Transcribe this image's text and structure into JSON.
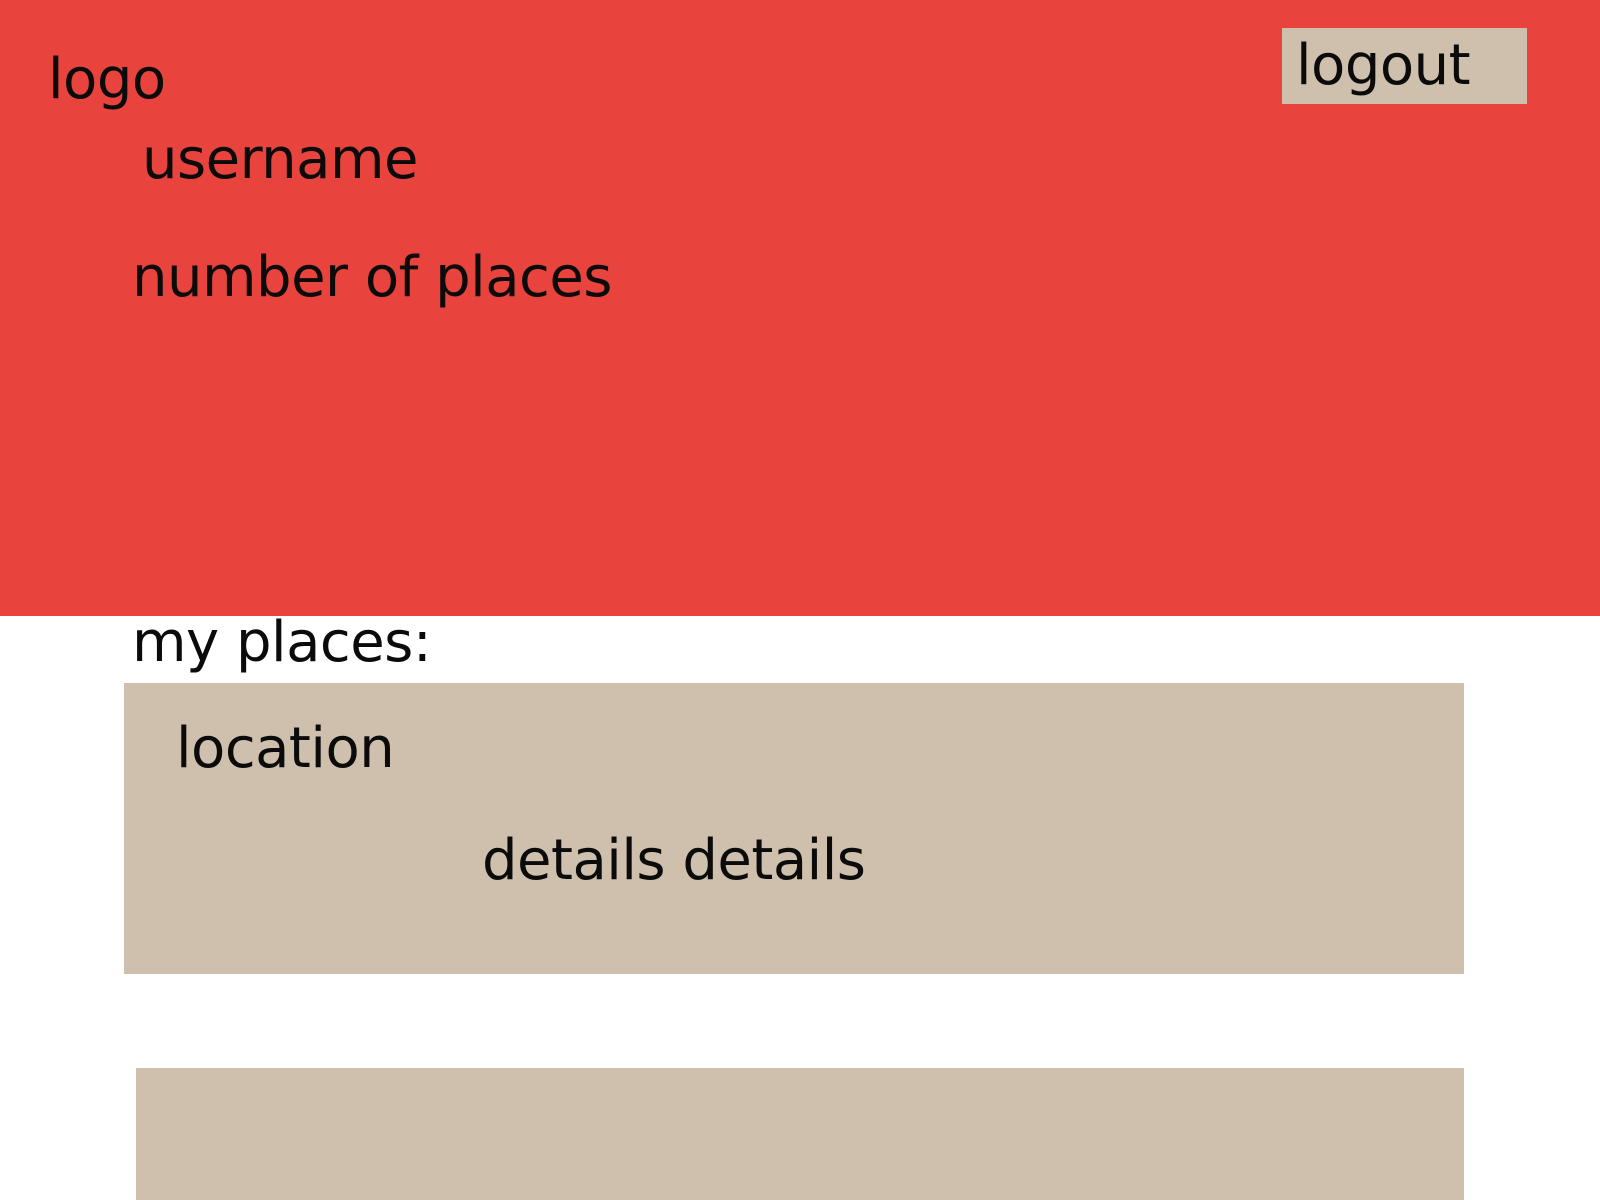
{
  "header": {
    "logo_text": "logo",
    "username": "username",
    "places_count_label": "number of places",
    "logout_label": "logout"
  },
  "main": {
    "section_title": "my places:",
    "places": [
      {
        "location": "location",
        "details": "details details"
      },
      {
        "location": "",
        "details": ""
      }
    ]
  },
  "colors": {
    "header_background": "#e8443d",
    "card_background": "#cec0ad",
    "page_background": "#ffffff",
    "text": "#0b0b0b"
  }
}
